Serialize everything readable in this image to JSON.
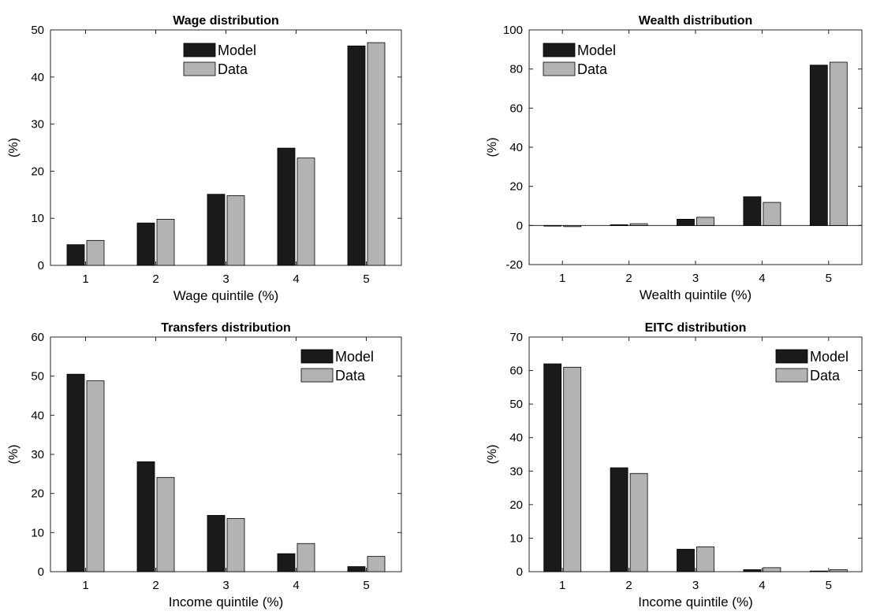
{
  "colors": {
    "model": "#1a1a1a",
    "data": "#b3b3b3",
    "axis": "#262626"
  },
  "chart_data": [
    {
      "type": "bar",
      "title": "Wage distribution",
      "xlabel": "Wage quintile (%)",
      "ylabel": "(%)",
      "categories": [
        "1",
        "2",
        "3",
        "4",
        "5"
      ],
      "ylim": [
        0,
        50
      ],
      "yticks": [
        "0",
        "10",
        "20",
        "30",
        "40",
        "50"
      ],
      "legend_position": "top-center",
      "series": [
        {
          "name": "Model",
          "values": [
            4.4,
            9.0,
            15.1,
            24.9,
            46.6
          ]
        },
        {
          "name": "Data",
          "values": [
            5.3,
            9.8,
            14.8,
            22.8,
            47.3
          ]
        }
      ]
    },
    {
      "type": "bar",
      "title": "Wealth distribution",
      "xlabel": "Wealth quintile (%)",
      "ylabel": "(%)",
      "categories": [
        "1",
        "2",
        "3",
        "4",
        "5"
      ],
      "ylim": [
        -20,
        100
      ],
      "yticks": [
        "-20",
        "0",
        "20",
        "40",
        "60",
        "80",
        "100"
      ],
      "legend_position": "top-left",
      "series": [
        {
          "name": "Model",
          "values": [
            -0.3,
            0.4,
            3.2,
            14.7,
            82.0
          ]
        },
        {
          "name": "Data",
          "values": [
            -0.6,
            0.9,
            4.2,
            11.8,
            83.5
          ]
        }
      ]
    },
    {
      "type": "bar",
      "title": "Transfers distribution",
      "xlabel": "Income quintile (%)",
      "ylabel": "(%)",
      "categories": [
        "1",
        "2",
        "3",
        "4",
        "5"
      ],
      "ylim": [
        0,
        60
      ],
      "yticks": [
        "0",
        "10",
        "20",
        "30",
        "40",
        "50",
        "60"
      ],
      "legend_position": "top-right",
      "series": [
        {
          "name": "Model",
          "values": [
            50.5,
            28.1,
            14.4,
            4.6,
            1.3
          ]
        },
        {
          "name": "Data",
          "values": [
            48.8,
            24.1,
            13.6,
            7.2,
            3.9
          ]
        }
      ]
    },
    {
      "type": "bar",
      "title": "EITC distribution",
      "xlabel": "Income quintile (%)",
      "ylabel": "(%)",
      "categories": [
        "1",
        "2",
        "3",
        "4",
        "5"
      ],
      "ylim": [
        0,
        70
      ],
      "yticks": [
        "0",
        "10",
        "20",
        "30",
        "40",
        "50",
        "60",
        "70"
      ],
      "legend_position": "top-right",
      "series": [
        {
          "name": "Model",
          "values": [
            62.0,
            31.0,
            6.7,
            0.6,
            0.2
          ]
        },
        {
          "name": "Data",
          "values": [
            61.0,
            29.3,
            7.4,
            1.2,
            0.6
          ]
        }
      ]
    }
  ]
}
